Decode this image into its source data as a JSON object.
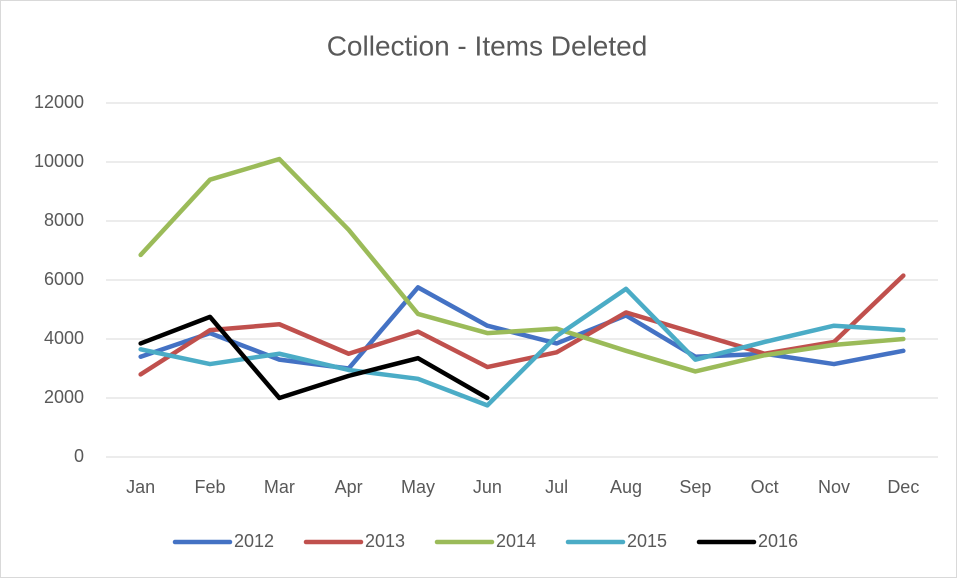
{
  "chart_data": {
    "type": "line",
    "title": "Collection - Items Deleted",
    "categories": [
      "Jan",
      "Feb",
      "Mar",
      "Apr",
      "May",
      "Jun",
      "Jul",
      "Aug",
      "Sep",
      "Oct",
      "Nov",
      "Dec"
    ],
    "series": [
      {
        "name": "2012",
        "color": "#4472c4",
        "values": [
          3400,
          4200,
          3300,
          3000,
          5750,
          4450,
          3850,
          4800,
          3400,
          3500,
          3150,
          3600
        ]
      },
      {
        "name": "2013",
        "color": "#c0504d",
        "values": [
          2800,
          4300,
          4500,
          3500,
          4250,
          3050,
          3550,
          4900,
          4200,
          3500,
          3900,
          6150
        ]
      },
      {
        "name": "2014",
        "color": "#9bbb59",
        "values": [
          6850,
          9400,
          10100,
          7700,
          4850,
          4200,
          4350,
          3600,
          2900,
          3450,
          3800,
          4000
        ]
      },
      {
        "name": "2015",
        "color": "#4bacc6",
        "values": [
          3650,
          3150,
          3500,
          2950,
          2650,
          1750,
          4100,
          5700,
          3300,
          3900,
          4450,
          4300
        ]
      },
      {
        "name": "2016",
        "color": "#000000",
        "values": [
          3850,
          4750,
          2000,
          2750,
          3350,
          2000,
          null,
          null,
          null,
          null,
          null,
          null
        ]
      }
    ],
    "ylim": [
      0,
      12000
    ],
    "yticks": [
      0,
      2000,
      4000,
      6000,
      8000,
      10000,
      12000
    ],
    "grid": true,
    "legend": "bottom"
  }
}
